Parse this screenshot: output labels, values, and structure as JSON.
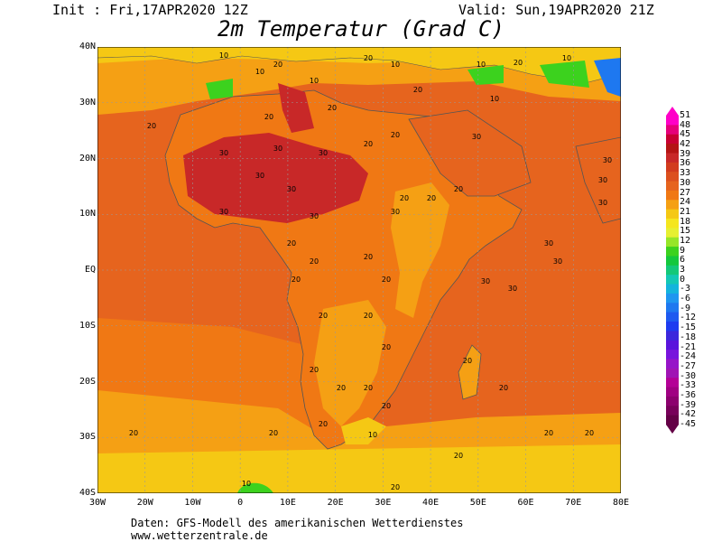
{
  "header": {
    "init": "Init : Fri,17APR2020 12Z",
    "valid": "Valid: Sun,19APR2020 21Z",
    "title": "2m Temperatur (Grad C)"
  },
  "axes": {
    "lat_labels": [
      "40N",
      "30N",
      "20N",
      "10N",
      "EQ",
      "10S",
      "20S",
      "30S",
      "40S"
    ],
    "lon_labels": [
      "30W",
      "20W",
      "10W",
      "0",
      "10E",
      "20E",
      "30E",
      "40E",
      "50E",
      "60E",
      "70E",
      "80E"
    ]
  },
  "colorbar": {
    "labels": [
      "51",
      "48",
      "45",
      "42",
      "39",
      "36",
      "33",
      "30",
      "27",
      "24",
      "21",
      "18",
      "15",
      "12",
      "9",
      "6",
      "3",
      "0",
      "-3",
      "-6",
      "-9",
      "-12",
      "-15",
      "-18",
      "-21",
      "-24",
      "-27",
      "-30",
      "-33",
      "-36",
      "-39",
      "-42",
      "-45"
    ],
    "colors": [
      "#ff00c8",
      "#e6007a",
      "#c80032",
      "#b41414",
      "#c82828",
      "#d23c1e",
      "#dc501e",
      "#e6641e",
      "#f07814",
      "#f5a014",
      "#f5c814",
      "#f5e61e",
      "#e6f032",
      "#96e628",
      "#3cd21e",
      "#14c83c",
      "#14c878",
      "#14c8b4",
      "#14b4dc",
      "#1e96f0",
      "#1e78f0",
      "#1e5af0",
      "#1e3cf0",
      "#3c28dc",
      "#5a14dc",
      "#7814dc",
      "#9614c8",
      "#a014b4",
      "#b40096",
      "#a00082",
      "#8c006e",
      "#78005a",
      "#640046"
    ]
  },
  "labels": {
    "ten": "10",
    "twenty": "20",
    "thirty": "30"
  },
  "credits": {
    "line1": "Daten: GFS-Modell des amerikanischen Wetterdienstes",
    "line2": "www.wetterzentrale.de"
  }
}
